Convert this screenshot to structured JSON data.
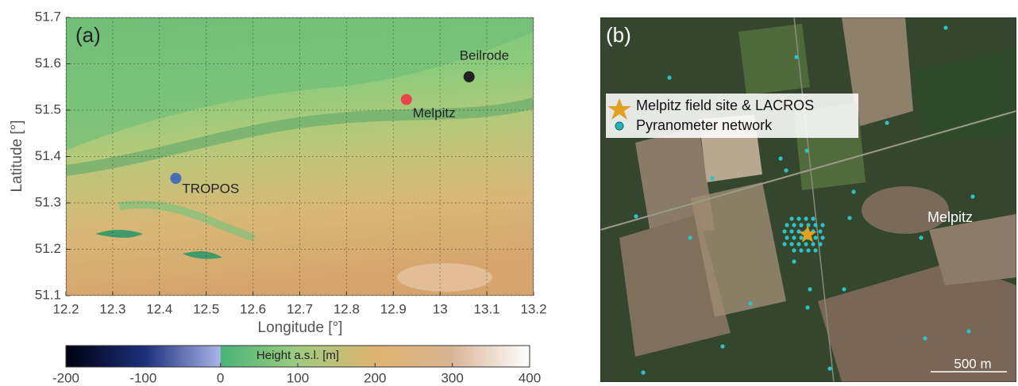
{
  "chart_data": [
    {
      "type": "scatter",
      "label": "(a)",
      "xlabel": "Longitude [°]",
      "ylabel": "Latitude [°]",
      "xlim": [
        12.2,
        13.2
      ],
      "xticks": [
        12.2,
        12.3,
        12.4,
        12.5,
        12.6,
        12.7,
        12.8,
        12.9,
        13,
        13.1,
        13.2
      ],
      "ylim": [
        51.1,
        51.7
      ],
      "yticks": [
        51.1,
        51.2,
        51.3,
        51.4,
        51.5,
        51.6,
        51.7
      ],
      "grid": true,
      "series": [
        {
          "name": "TROPOS",
          "color": "#4a6fb5",
          "x": [
            12.435
          ],
          "values": [
            51.353
          ]
        },
        {
          "name": "Melpitz",
          "color": "#e8474a",
          "x": [
            12.928
          ],
          "values": [
            51.523
          ]
        },
        {
          "name": "Beilrode",
          "color": "#222222",
          "x": [
            13.062
          ],
          "values": [
            51.572
          ]
        }
      ]
    },
    {
      "type": "colorbar",
      "title": "Height a.s.l. [m]",
      "xlim": [
        -200,
        400
      ],
      "xticks": [
        -200,
        -100,
        0,
        100,
        200,
        300,
        400
      ]
    }
  ],
  "image_panel": {
    "label": "(b)",
    "legend": [
      {
        "label": "Melpitz field site & LACROS"
      },
      {
        "label": "Pyranometer network"
      }
    ],
    "place_label": "Melpitz",
    "scale_bar": "500 m"
  }
}
